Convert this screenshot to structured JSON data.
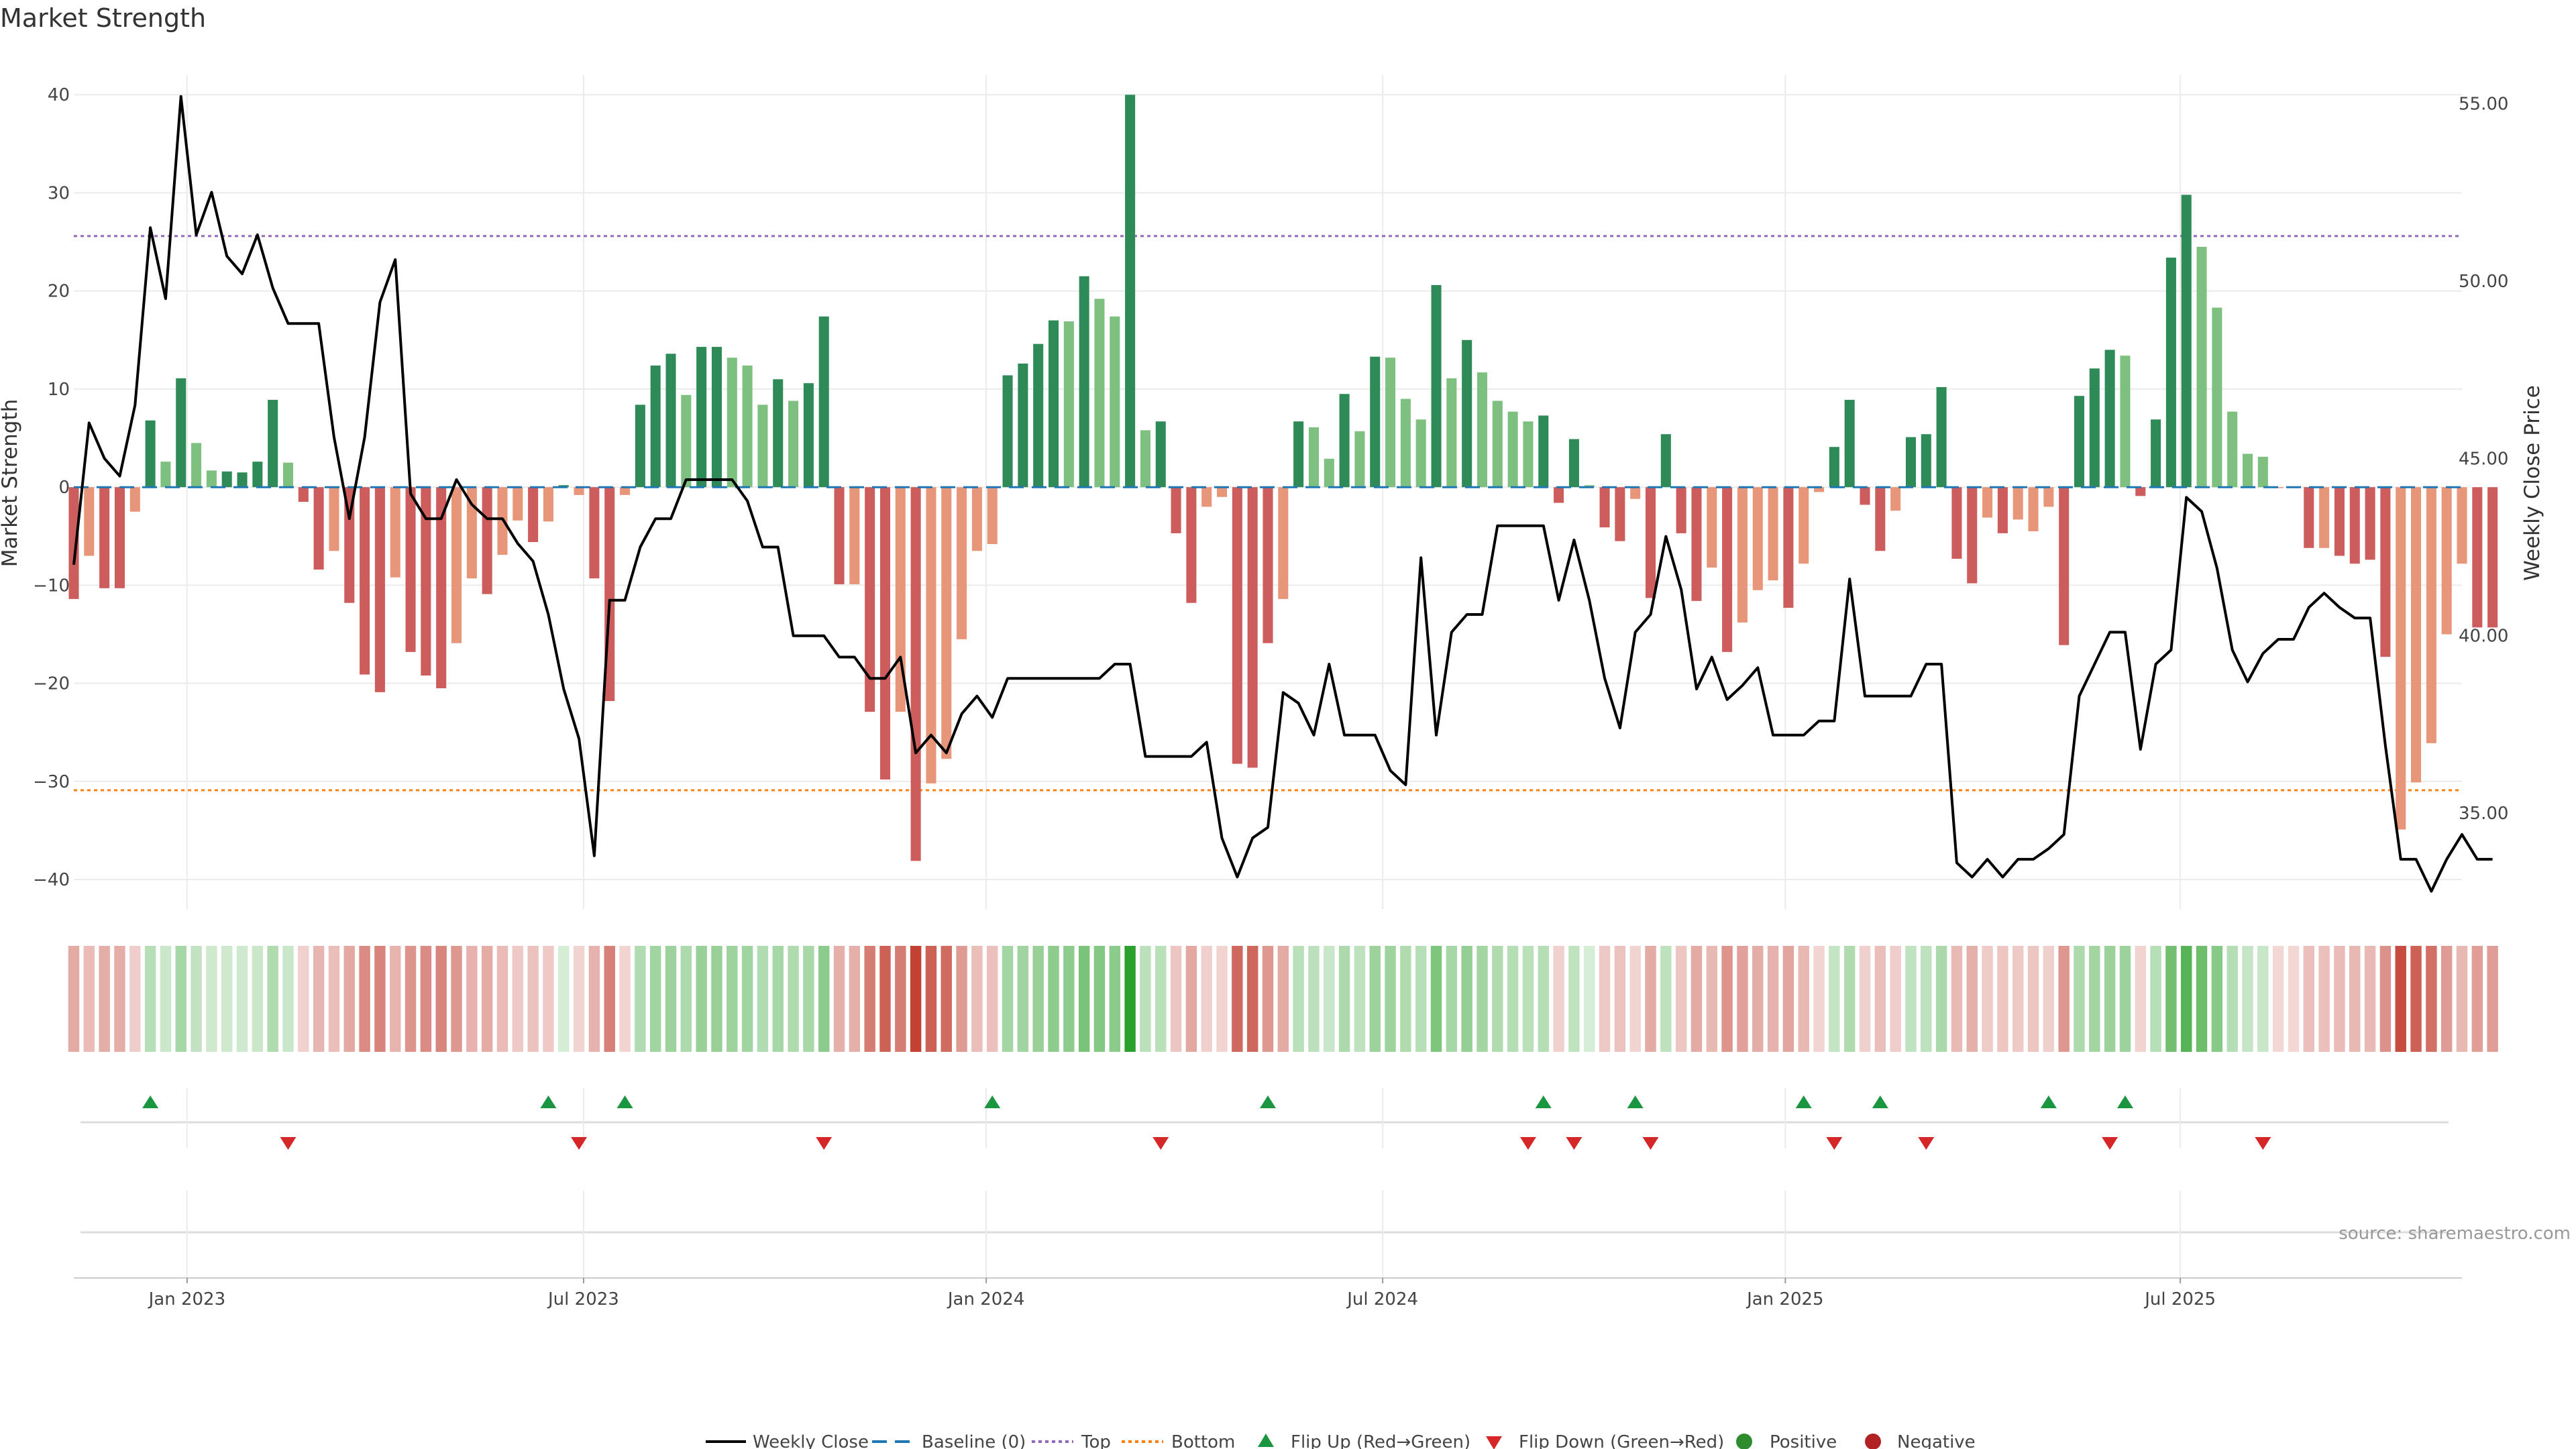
{
  "chart_data": {
    "type": "bar",
    "title": "Market Strength",
    "ylabel_left": "Market Strength",
    "ylabel_right": "Weekly Close Price",
    "ylim_left": [
      -43,
      42
    ],
    "ylim_right": [
      32.3,
      55.8
    ],
    "left_ticks": [
      40,
      30,
      20,
      10,
      0,
      -10,
      -20,
      -30,
      -40
    ],
    "left_tick_labels": [
      "40",
      "30",
      "20",
      "10",
      "0",
      "−10",
      "−20",
      "−30",
      "−40"
    ],
    "right_ticks": [
      55,
      50,
      45,
      40,
      35
    ],
    "right_tick_labels": [
      "55.00",
      "50.00",
      "45.00",
      "40.00",
      "35.00"
    ],
    "x_start_week_index": 0,
    "x_end_week_index": 156,
    "x_ticks": [
      {
        "week": 7.4,
        "label": "Jan 2023"
      },
      {
        "week": 33.3,
        "label": "Jul 2023"
      },
      {
        "week": 59.6,
        "label": "Jan 2024"
      },
      {
        "week": 85.5,
        "label": "Jul 2024"
      },
      {
        "week": 111.8,
        "label": "Jan 2025"
      },
      {
        "week": 137.6,
        "label": "Jul 2025"
      }
    ],
    "top_threshold": 25.6,
    "bottom_threshold": -30.9,
    "baseline": 0,
    "colors": {
      "strong_up": "#2e8b57",
      "weak_up": "#7ec07f",
      "strong_down": "#cd5c5c",
      "weak_down": "#e8967a",
      "price_line": "#000000",
      "baseline": "#1f77b4",
      "top": "#9467bd",
      "bottom": "#ff7f0e",
      "flip_up": "#1a9641",
      "flip_down": "#d62728",
      "positive": "#2e8b2e",
      "negative": "#b22222",
      "heat_green": "#2ca02c",
      "heat_red": "#c0392b",
      "grid": "#ebebeb"
    },
    "strength": [
      -11.4,
      -7.0,
      -10.3,
      -10.3,
      -2.5,
      6.8,
      2.6,
      11.1,
      4.5,
      1.7,
      1.6,
      1.5,
      2.6,
      8.9,
      2.5,
      -1.5,
      -8.4,
      -6.5,
      -11.8,
      -19.1,
      -20.9,
      -9.2,
      -16.8,
      -19.2,
      -20.5,
      -15.9,
      -9.3,
      -10.9,
      -6.9,
      -3.4,
      -5.6,
      -3.5,
      0.2,
      -0.8,
      -9.3,
      -21.8,
      -0.8,
      8.4,
      12.4,
      13.6,
      9.4,
      14.3,
      14.3,
      13.2,
      12.4,
      8.4,
      11.0,
      8.8,
      10.6,
      17.4,
      -9.9,
      -9.9,
      -22.9,
      -29.8,
      -22.9,
      -38.1,
      -30.2,
      -27.7,
      -15.5,
      -6.5,
      -5.8,
      11.4,
      12.6,
      14.6,
      17.0,
      16.9,
      21.5,
      19.2,
      17.4,
      40.0,
      5.8,
      6.7,
      -4.7,
      -11.8,
      -2.0,
      -1.0,
      -28.2,
      -28.6,
      -15.9,
      -11.4,
      6.7,
      6.1,
      2.9,
      9.5,
      5.7,
      13.3,
      13.2,
      9.0,
      6.9,
      20.6,
      11.1,
      15.0,
      11.7,
      8.8,
      7.7,
      6.7,
      7.3,
      -1.6,
      4.9,
      0.2,
      -4.1,
      -5.5,
      -1.2,
      -11.3,
      5.4,
      -4.7,
      -11.6,
      -8.2,
      -16.8,
      -13.8,
      -10.5,
      -9.5,
      -12.3,
      -7.8,
      -0.5,
      4.1,
      8.9,
      -1.8,
      -6.5,
      -2.4,
      5.1,
      5.4,
      10.2,
      -7.3,
      -9.8,
      -3.1,
      -4.7,
      -3.3,
      -4.5,
      -2.0,
      -16.1,
      9.3,
      12.1,
      14.0,
      13.4,
      -0.9,
      6.9,
      23.4,
      29.8,
      24.5,
      18.3,
      7.7,
      3.4,
      3.1,
      -0.1,
      -0.1,
      -6.2,
      -6.2,
      -7.0,
      -7.8,
      -7.4,
      -17.3,
      -34.9,
      -30.1,
      -26.1,
      -15.0,
      -7.8,
      -14.3,
      -14.3
    ],
    "strength_weak_flags": [
      0,
      1,
      0,
      0,
      1,
      0,
      1,
      0,
      1,
      1,
      0,
      0,
      0,
      0,
      1,
      0,
      0,
      1,
      0,
      0,
      0,
      1,
      0,
      0,
      0,
      1,
      1,
      0,
      1,
      1,
      0,
      1,
      0,
      1,
      0,
      0,
      1,
      0,
      0,
      0,
      1,
      0,
      0,
      1,
      1,
      1,
      0,
      1,
      0,
      0,
      0,
      1,
      0,
      0,
      1,
      0,
      1,
      1,
      1,
      1,
      1,
      0,
      0,
      0,
      0,
      1,
      0,
      1,
      1,
      0,
      1,
      0,
      0,
      0,
      1,
      1,
      0,
      0,
      0,
      1,
      0,
      1,
      1,
      0,
      1,
      0,
      1,
      1,
      1,
      0,
      1,
      0,
      1,
      1,
      1,
      1,
      0,
      0,
      0,
      1,
      0,
      0,
      1,
      0,
      0,
      0,
      0,
      1,
      0,
      1,
      1,
      1,
      0,
      1,
      1,
      0,
      0,
      0,
      0,
      1,
      0,
      0,
      0,
      0,
      0,
      1,
      0,
      1,
      1,
      1,
      0,
      0,
      0,
      0,
      1,
      0,
      0,
      0,
      0,
      1,
      1,
      1,
      1,
      1,
      1,
      1,
      0,
      1,
      0,
      0,
      0,
      0,
      1,
      1,
      1,
      1,
      1,
      0
    ],
    "weekly_close": [
      42.0,
      46.0,
      45.0,
      44.5,
      46.5,
      51.5,
      49.5,
      55.2,
      51.3,
      52.5,
      50.7,
      50.2,
      51.3,
      49.8,
      48.8,
      48.8,
      48.8,
      45.6,
      43.3,
      45.6,
      49.4,
      50.6,
      44.0,
      43.3,
      43.3,
      44.4,
      43.7,
      43.3,
      43.3,
      42.6,
      42.1,
      40.6,
      38.5,
      37.1,
      33.8,
      41.0,
      41.0,
      42.5,
      43.3,
      43.3,
      44.4,
      44.4,
      44.4,
      44.4,
      43.8,
      42.5,
      42.5,
      40.0,
      40.0,
      40.0,
      39.4,
      39.4,
      38.8,
      38.8,
      39.4,
      36.7,
      37.2,
      36.7,
      37.8,
      38.3,
      37.7,
      38.8,
      38.8,
      38.8,
      38.8,
      38.8,
      38.8,
      38.8,
      39.2,
      39.2,
      36.6,
      36.6,
      36.6,
      36.6,
      37.0,
      34.3,
      33.2,
      34.3,
      34.6,
      38.4,
      38.1,
      37.2,
      39.2,
      37.2,
      37.2,
      37.2,
      36.2,
      35.8,
      42.2,
      37.2,
      40.1,
      40.6,
      40.6,
      43.1,
      43.1,
      43.1,
      43.1,
      41.0,
      42.7,
      41.0,
      38.8,
      37.4,
      40.1,
      40.6,
      42.8,
      41.3,
      38.5,
      39.4,
      38.2,
      38.6,
      39.1,
      37.2,
      37.2,
      37.2,
      37.6,
      37.6,
      41.6,
      38.3,
      38.3,
      38.3,
      38.3,
      39.2,
      39.2,
      33.6,
      33.2,
      33.7,
      33.2,
      33.7,
      33.7,
      34.0,
      34.4,
      38.3,
      39.2,
      40.1,
      40.1,
      36.8,
      39.2,
      39.6,
      43.9,
      43.5,
      41.9,
      39.6,
      38.7,
      39.5,
      39.9,
      39.9,
      40.8,
      41.2,
      40.8,
      40.5,
      40.5,
      36.9,
      33.7,
      33.7,
      32.8,
      33.7,
      34.4,
      33.7,
      33.7
    ],
    "flip_up_weeks": [
      5,
      31,
      36,
      60,
      78,
      96,
      102,
      113,
      118,
      129,
      134
    ],
    "flip_down_weeks": [
      14,
      33,
      49,
      71,
      95,
      98,
      103,
      115,
      121,
      133,
      143
    ],
    "legend": [
      "Weekly Close",
      "Baseline (0)",
      "Top",
      "Bottom",
      "Flip Up (Red→Green)",
      "Flip Down (Green→Red)",
      "Positive",
      "Negative"
    ],
    "source_note": "source: sharemaestro.com"
  }
}
